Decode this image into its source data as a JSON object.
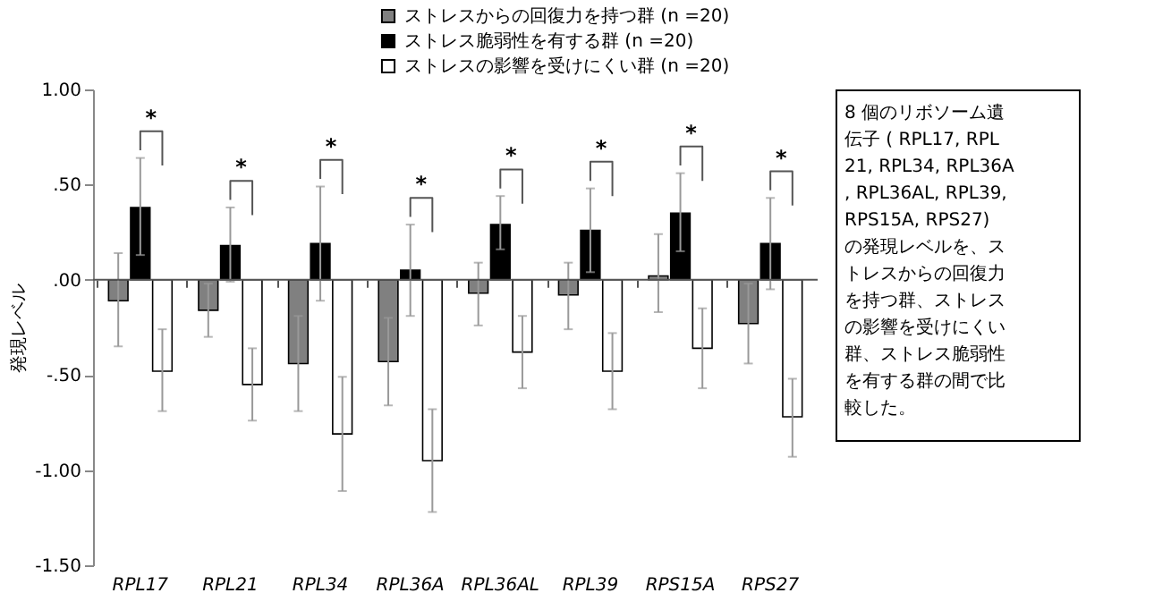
{
  "chart_data": {
    "type": "bar",
    "ylabel": "発現レベル",
    "categories": [
      "RPL17",
      "RPL21",
      "RPL34",
      "RPL36A",
      "RPL36AL",
      "RPL39",
      "RPS15A",
      "RPS27"
    ],
    "series": [
      {
        "name": "ストレスからの回復力を持つ群 (n =20)",
        "color": "#808080",
        "values": [
          -0.11,
          -0.16,
          -0.44,
          -0.43,
          -0.07,
          -0.08,
          0.02,
          -0.23
        ],
        "errors": [
          [
            -0.35,
            0.14
          ],
          [
            -0.3,
            -0.02
          ],
          [
            -0.69,
            -0.19
          ],
          [
            -0.66,
            -0.2
          ],
          [
            -0.24,
            0.09
          ],
          [
            -0.26,
            0.09
          ],
          [
            -0.17,
            0.24
          ],
          [
            -0.44,
            -0.02
          ]
        ]
      },
      {
        "name": "ストレス脆弱性を有する群 (n =20)",
        "color": "#000000",
        "values": [
          0.38,
          0.18,
          0.19,
          0.05,
          0.29,
          0.26,
          0.35,
          0.19
        ],
        "errors": [
          [
            0.13,
            0.64
          ],
          [
            -0.01,
            0.38
          ],
          [
            -0.11,
            0.49
          ],
          [
            -0.19,
            0.29
          ],
          [
            0.16,
            0.44
          ],
          [
            0.04,
            0.48
          ],
          [
            0.15,
            0.56
          ],
          [
            -0.05,
            0.43
          ]
        ]
      },
      {
        "name": "ストレスの影響を受けにくい群 (n =20)",
        "color": "#ffffff",
        "values": [
          -0.48,
          -0.55,
          -0.81,
          -0.95,
          -0.38,
          -0.48,
          -0.36,
          -0.72
        ],
        "errors": [
          [
            -0.69,
            -0.26
          ],
          [
            -0.74,
            -0.36
          ],
          [
            -1.11,
            -0.51
          ],
          [
            -1.22,
            -0.68
          ],
          [
            -0.57,
            -0.19
          ],
          [
            -0.68,
            -0.28
          ],
          [
            -0.57,
            -0.15
          ],
          [
            -0.93,
            -0.52
          ]
        ]
      }
    ],
    "ylim": [
      -1.5,
      1.0
    ],
    "yticks": [
      {
        "value": -1.5,
        "label": "-1.50"
      },
      {
        "value": -1.0,
        "label": "-1.00"
      },
      {
        "value": -0.5,
        "label": "-.50"
      },
      {
        "value": 0,
        "label": ".00"
      },
      {
        "value": 0.5,
        "label": ".50"
      },
      {
        "value": 1.0,
        "label": "1.00"
      }
    ],
    "grid": false,
    "legend": "top",
    "ref_lines": [
      {
        "axis": "y",
        "value": 0,
        "color": "#555555"
      }
    ],
    "annotations": [
      "*",
      "*",
      "*",
      "*",
      "*",
      "*",
      "*",
      "*",
      "8 個のリボソーム遺伝子 ( RPL17, RPL21, RPL34, RPL36A, RPL36AL, RPL39, RPS15A, RPS27) の発現レベルを、ストレスからの回復力を持つ群、ストレスの影響を受けにくい群、ストレス脆弱性を有する群の間で比較した。"
    ]
  }
}
